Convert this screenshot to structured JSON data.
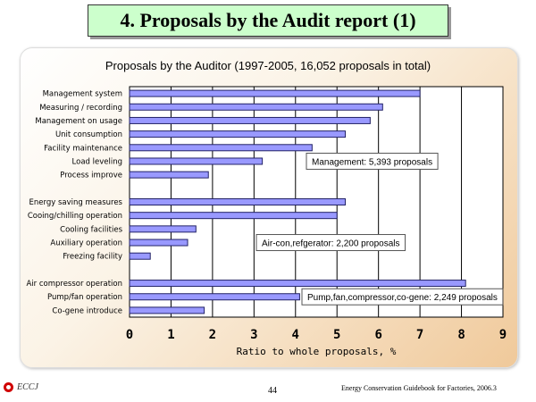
{
  "page": {
    "title": "4. Proposals by the Audit report (1)",
    "page_number": "44",
    "source": "Energy Conservation Guidebook for Factories, 2006.3",
    "logo_text": "ECCJ"
  },
  "colors": {
    "bar_fill": "#9999ff",
    "bar_stroke": "#222266",
    "title_bg": "#ccffcc"
  },
  "chart_data": {
    "type": "bar",
    "orientation": "horizontal",
    "title": "Proposals by the Auditor (1997-2005, 16,052 proposals in total)",
    "xlabel": "Ratio to whole proposals, %",
    "xlim": [
      0,
      9
    ],
    "xticks": [
      0,
      1,
      2,
      3,
      4,
      5,
      6,
      7,
      8,
      9
    ],
    "categories": [
      "Management system",
      "Measuring / recording",
      "Management on usage",
      "Unit consumption",
      "Facility maintenance",
      "Load leveling",
      "Process improve",
      "",
      "Energy saving measures",
      "Cooing/chilling operation",
      "Cooling facilities",
      "Auxiliary operation",
      "Freezing facility",
      "",
      "Air compressor operation",
      "Pump/fan operation",
      "Co-gene introduce"
    ],
    "values": [
      7.0,
      6.1,
      5.8,
      5.2,
      4.4,
      3.2,
      1.9,
      null,
      5.2,
      5.0,
      1.6,
      1.4,
      0.5,
      null,
      8.1,
      4.1,
      1.8
    ],
    "annotations": [
      {
        "text": "Management: 5,393 proposals",
        "row": 5
      },
      {
        "text": "Air-con,refgerator: 2,200 proposals",
        "row": 11
      },
      {
        "text": "Pump,fan,compressor,co-gene: 2,249 proposals",
        "row": 15
      }
    ]
  }
}
